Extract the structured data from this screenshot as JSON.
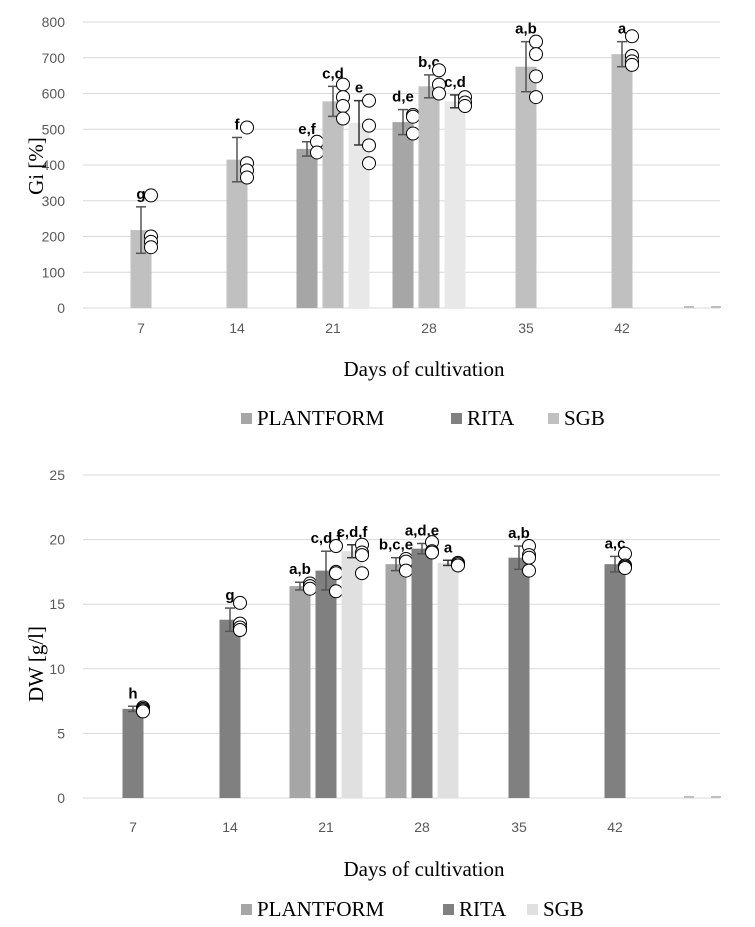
{
  "chart_data": [
    {
      "type": "bar",
      "categories": [
        "7",
        "14",
        "21",
        "28",
        "35",
        "42"
      ],
      "xlabel": "Days of cultivation",
      "ylabel": "Gi [%]",
      "ylim": [
        0,
        800
      ],
      "yticks": [
        0,
        100,
        200,
        300,
        400,
        500,
        600,
        700,
        800
      ],
      "grid": true,
      "legend": "bottom",
      "series": [
        {
          "name": "PLANTFORM",
          "color": "#a6a6a6",
          "values": [
            null,
            null,
            445,
            520,
            null,
            null
          ],
          "errors": [
            null,
            null,
            20,
            35,
            null,
            null
          ]
        },
        {
          "name": "RITA",
          "color": "#808080",
          "values": [
            null,
            null,
            null,
            null,
            null,
            null
          ],
          "errors": [
            null,
            null,
            null,
            null,
            null,
            null
          ]
        },
        {
          "name": "SGB",
          "color": "#c0c0c0",
          "values": [
            218,
            415,
            578,
            620,
            675,
            710
          ],
          "errors": [
            65,
            62,
            42,
            32,
            70,
            35
          ]
        }
      ],
      "third_bars": [
        {
          "category": "21",
          "value": 518,
          "error": 62,
          "color": "#e8e8e8",
          "letter": "e"
        },
        {
          "category": "28",
          "value": 578,
          "error": 18,
          "color": "#e8e8e8",
          "letter": "c,d"
        }
      ],
      "letters": {
        "SGB": [
          "g",
          "f",
          "c,d",
          "b,c",
          "a,b",
          "a"
        ],
        "PLANTFORM": [
          null,
          null,
          "e,f",
          "d,e",
          null,
          null
        ]
      },
      "points": {
        "7": [
          315,
          200,
          185,
          170
        ],
        "14": [
          505,
          405,
          385,
          365
        ],
        "21a": [
          465,
          435
        ],
        "21b": [
          625,
          590,
          565,
          530
        ],
        "21c": [
          580,
          510,
          455,
          405
        ],
        "28a": [
          540,
          535,
          488
        ],
        "28b": [
          665,
          625,
          600
        ],
        "28c": [
          590,
          575,
          565
        ],
        "35": [
          745,
          710,
          648,
          590
        ],
        "42": [
          760,
          705,
          690,
          680
        ]
      }
    },
    {
      "type": "bar",
      "categories": [
        "7",
        "14",
        "21",
        "28",
        "35",
        "42"
      ],
      "xlabel": "Days of cultivation",
      "ylabel": "DW [g/l]",
      "ylim": [
        0,
        25
      ],
      "yticks": [
        0,
        5,
        10,
        15,
        20,
        25
      ],
      "grid": true,
      "legend": "bottom",
      "series": [
        {
          "name": "PLANTFORM",
          "color": "#a6a6a6",
          "values": [
            null,
            null,
            16.4,
            18.1,
            null,
            null
          ],
          "errors": [
            null,
            null,
            0.3,
            0.5,
            null,
            null
          ]
        },
        {
          "name": "RITA",
          "color": "#808080",
          "values": [
            6.9,
            13.8,
            17.6,
            19.3,
            18.6,
            18.1
          ],
          "errors": [
            0.2,
            0.9,
            1.5,
            0.4,
            0.9,
            0.6
          ]
        },
        {
          "name": "SGB",
          "color": "#e0e0e0",
          "values": [
            null,
            null,
            19.1,
            18.2,
            null,
            null
          ],
          "errors": [
            null,
            null,
            0.5,
            0.2,
            null,
            null
          ]
        }
      ],
      "letters": {
        "PLANTFORM": [
          null,
          null,
          "a,b",
          "b,c,e",
          null,
          null
        ],
        "RITA": [
          "h",
          "g",
          "c,d,f",
          "a,d,e",
          "a,b",
          "a,c"
        ],
        "SGB": [
          null,
          null,
          "c,d,f",
          "a",
          null,
          null
        ]
      },
      "points": {
        "7": [
          7.0,
          6.9,
          6.8,
          6.7
        ],
        "14": [
          15.1,
          13.5,
          13.2,
          13.0
        ],
        "21a": [
          16.6,
          16.4,
          16.2
        ],
        "21b": [
          19.5,
          17.5,
          17.4,
          16.0
        ],
        "21c": [
          19.6,
          19.0,
          18.8,
          17.4
        ],
        "28a": [
          18.5,
          18.3,
          17.6
        ],
        "28b": [
          19.8,
          19.1,
          19.0
        ],
        "28c": [
          18.2,
          18.1,
          18.0
        ],
        "35": [
          19.5,
          18.8,
          18.6,
          17.6
        ],
        "42": [
          18.9,
          18.0,
          17.9,
          17.8
        ]
      }
    }
  ],
  "legend_labels": [
    "PLANTFORM",
    "RITA",
    "SGB"
  ],
  "charts": [
    {
      "xlabel": "Days of cultivation",
      "ylabel": "Gi [%]"
    },
    {
      "xlabel": "Days of cultivation",
      "ylabel": "DW [g/l]"
    }
  ]
}
